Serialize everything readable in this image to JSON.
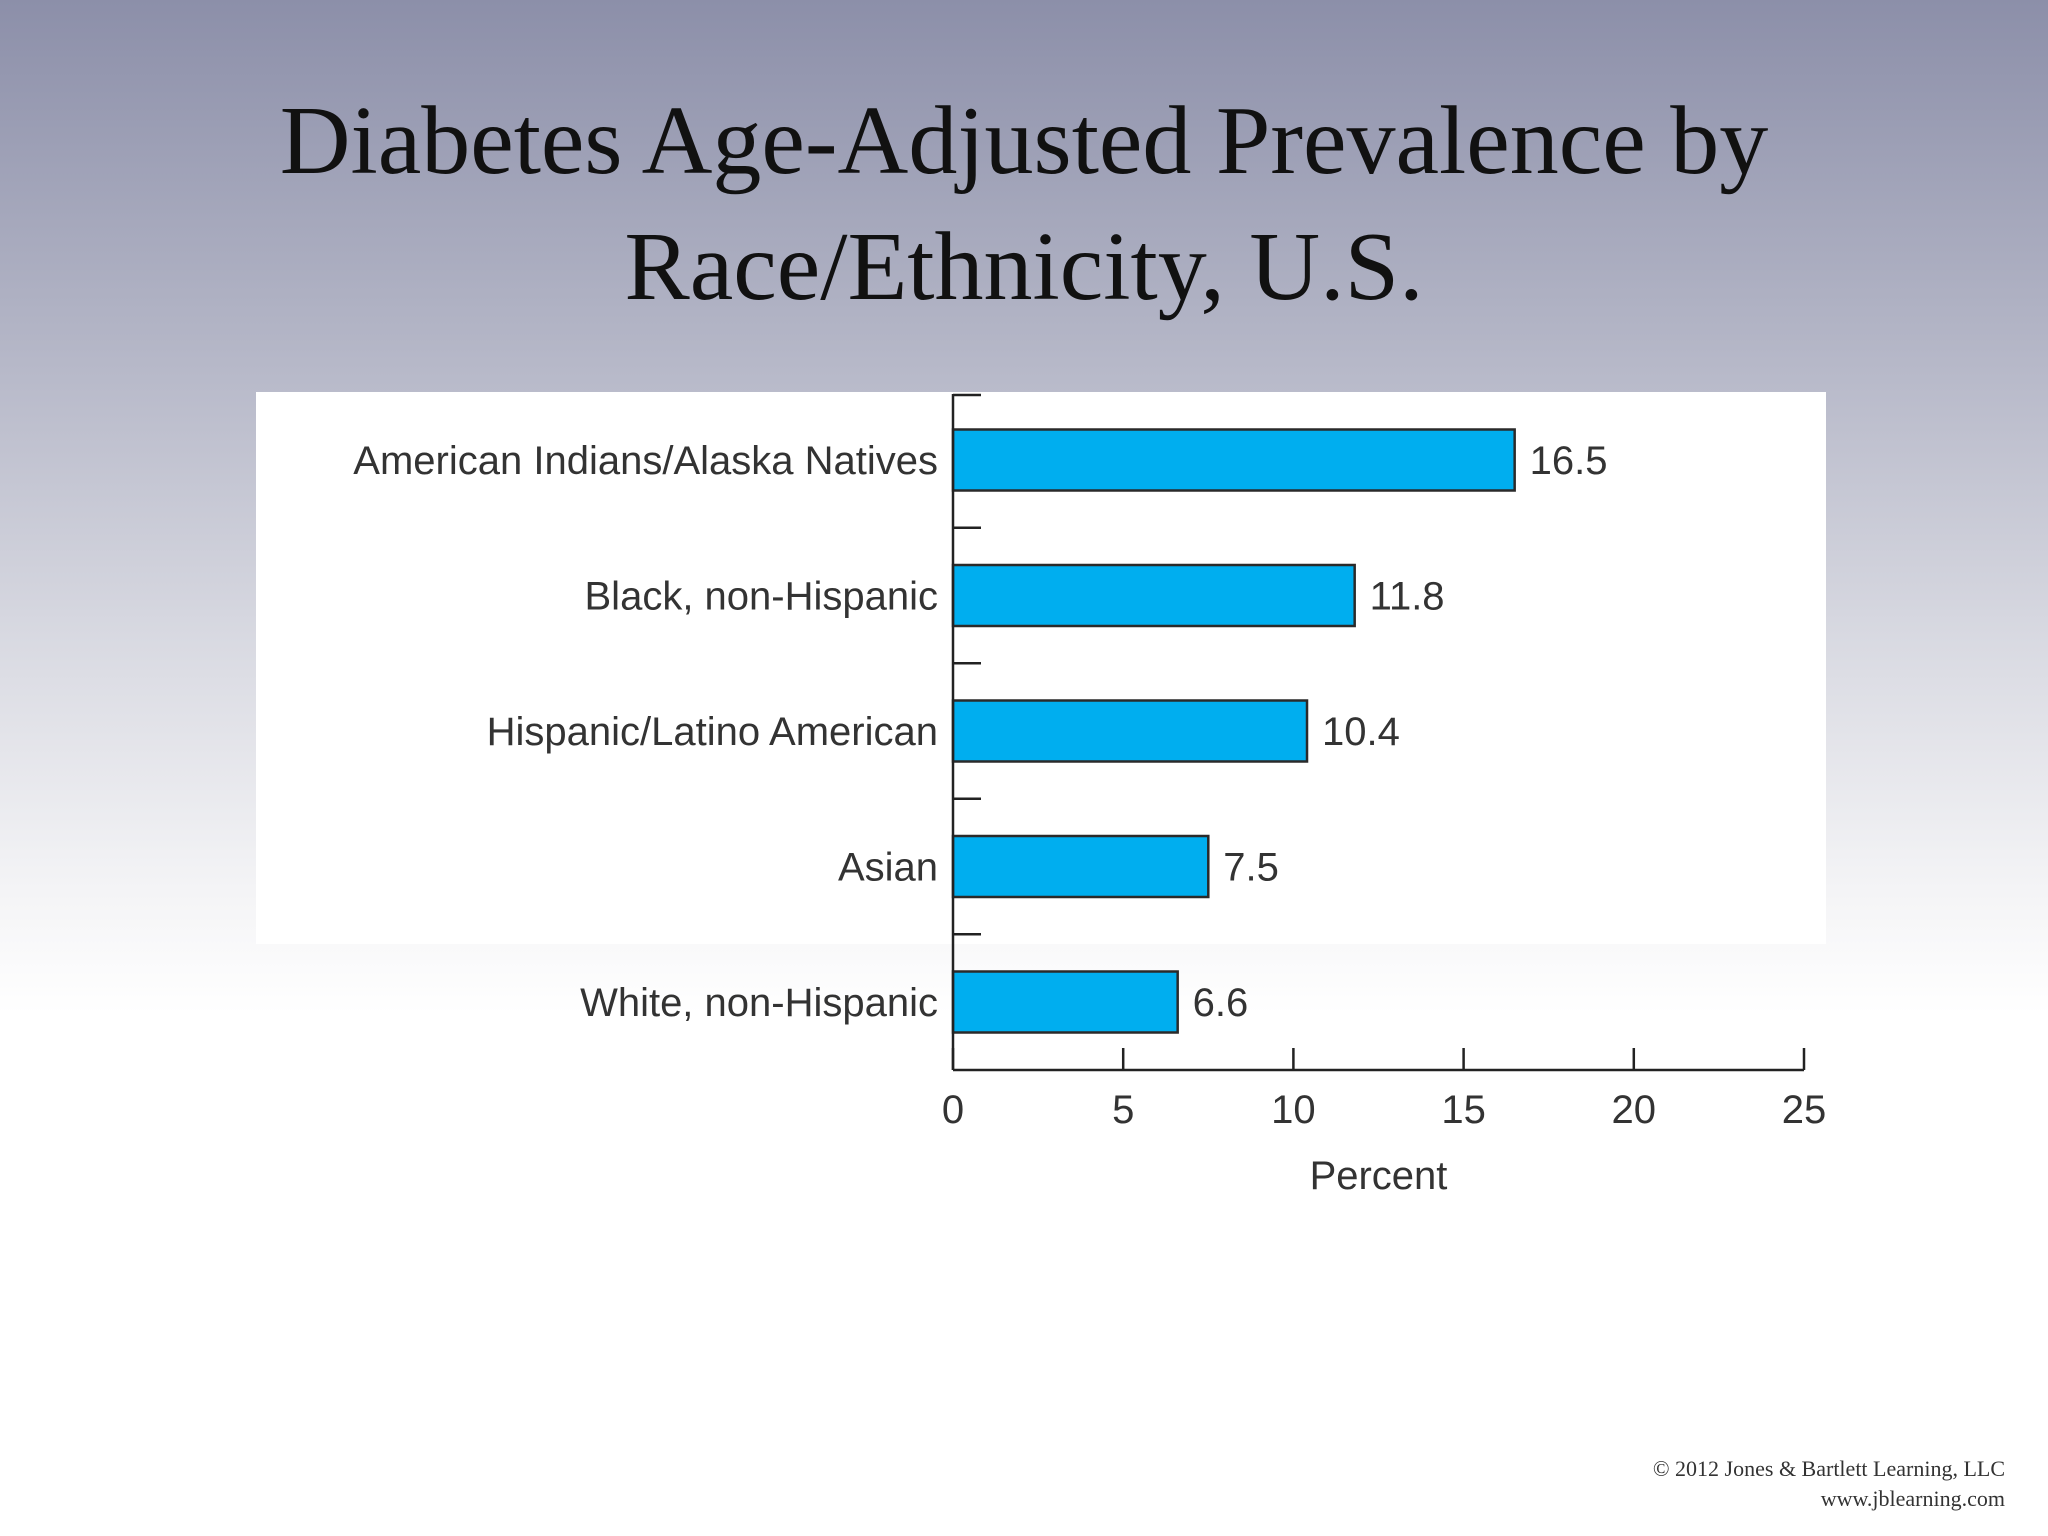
{
  "slide": {
    "title_line1": "Diabetes Age-Adjusted Prevalence by",
    "title_line2": "Race/Ethnicity, U.S.",
    "copyright": "© 2012 Jones & Bartlett Learning, LLC",
    "website": "www.jblearning.com"
  },
  "chart_data": {
    "type": "bar",
    "orientation": "horizontal",
    "categories": [
      "American Indians/Alaska Natives",
      "Black, non-Hispanic",
      "Hispanic/Latino American",
      "Asian",
      "White, non-Hispanic"
    ],
    "values": [
      16.5,
      11.8,
      10.4,
      7.5,
      6.6
    ],
    "data_labels": [
      "16.5",
      "11.8",
      "10.4",
      "7.5",
      "6.6"
    ],
    "xlabel": "Percent",
    "xlim": [
      0,
      25
    ],
    "xticks": [
      0,
      5,
      10,
      15,
      20,
      25
    ],
    "grid": false,
    "bar_color": "#00aeef",
    "bar_edge_color": "#2a2a2a"
  }
}
